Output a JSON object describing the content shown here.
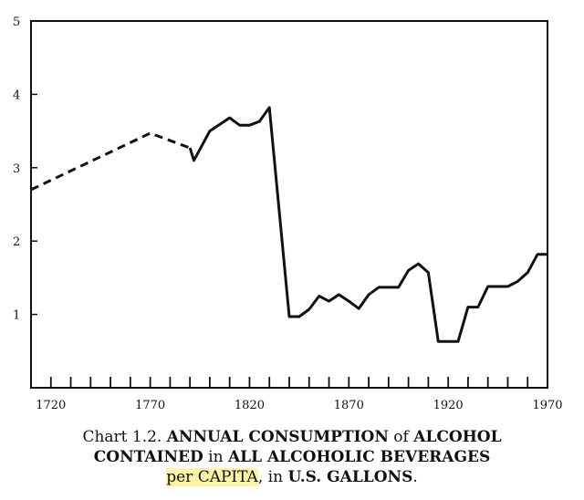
{
  "chart_data": {
    "type": "line",
    "x_ticks": [
      1720,
      1770,
      1820,
      1870,
      1920,
      1970
    ],
    "y_ticks": [
      1,
      2,
      3,
      4,
      5
    ],
    "xlim": [
      1710,
      1970
    ],
    "ylim": [
      0,
      5
    ],
    "grid": false,
    "series": [
      {
        "style": "dashed",
        "x": [
          1710,
          1770,
          1790
        ],
        "y": [
          2.7,
          3.47,
          3.27
        ]
      },
      {
        "style": "solid",
        "x": [
          1790,
          1792,
          1800,
          1810,
          1815,
          1820,
          1825,
          1830,
          1840,
          1845,
          1850,
          1855,
          1860,
          1865,
          1870,
          1875,
          1880,
          1885,
          1890,
          1895,
          1900,
          1905,
          1910,
          1915,
          1920,
          1925,
          1930,
          1935,
          1940,
          1945,
          1950,
          1955,
          1960,
          1965,
          1970
        ],
        "y": [
          3.27,
          3.1,
          3.5,
          3.68,
          3.58,
          3.58,
          3.63,
          3.82,
          0.97,
          0.97,
          1.07,
          1.25,
          1.18,
          1.27,
          1.18,
          1.08,
          1.27,
          1.37,
          1.37,
          1.37,
          1.6,
          1.69,
          1.57,
          0.63,
          0.63,
          0.63,
          1.1,
          1.1,
          1.38,
          1.38,
          1.38,
          1.45,
          1.57,
          1.82,
          1.82
        ]
      }
    ]
  },
  "caption": {
    "line1_a": "Chart 1.2. ",
    "line1_b": "ANNUAL CONSUMPTION",
    "line1_c": " of ",
    "line1_d": "ALCOHOL",
    "line2_a": "CONTAINED",
    "line2_b": " in ",
    "line2_c": "ALL ALCOHOLIC BEVERAGES",
    "line3_a": "per CAPITA",
    "line3_b": ", in ",
    "line3_c": "U.S. GALLONS",
    "line3_d": "."
  },
  "colors": {
    "highlight": "#fbf3a6",
    "ink": "#111111"
  }
}
